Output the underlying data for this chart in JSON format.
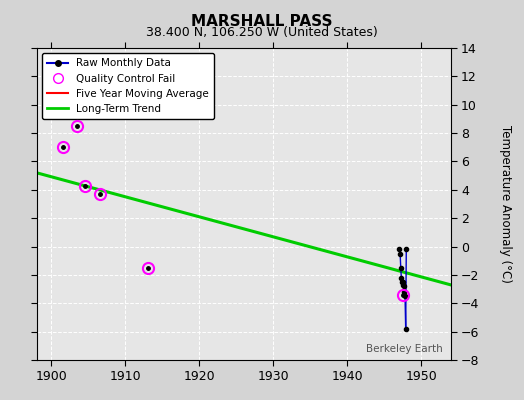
{
  "title": "MARSHALL PASS",
  "subtitle": "38.400 N, 106.250 W (United States)",
  "ylabel": "Temperature Anomaly (°C)",
  "watermark": "Berkeley Earth",
  "xlim": [
    1898,
    1954
  ],
  "ylim": [
    -8,
    14
  ],
  "yticks": [
    -8,
    -6,
    -4,
    -2,
    0,
    2,
    4,
    6,
    8,
    10,
    12,
    14
  ],
  "xticks": [
    1900,
    1910,
    1920,
    1930,
    1940,
    1950
  ],
  "background_color": "#d4d4d4",
  "plot_background": "#e6e6e6",
  "grid_color": "#ffffff",
  "raw_monthly_x": [
    1947.08,
    1947.17,
    1947.25,
    1947.33,
    1947.42,
    1947.5,
    1947.58,
    1947.67,
    1947.75,
    1947.83,
    1947.92,
    1948.0
  ],
  "raw_monthly_y": [
    -0.2,
    -0.5,
    -1.5,
    -2.2,
    -2.5,
    -2.7,
    -2.5,
    -2.8,
    -3.2,
    -3.5,
    -5.8,
    -0.2
  ],
  "raw_monthly_color": "#000000",
  "raw_monthly_line_color": "#0000cc",
  "qc_fail_x": [
    1901.5,
    1903.5,
    1904.5,
    1906.5,
    1913.0,
    1947.5
  ],
  "qc_fail_y": [
    7.0,
    8.5,
    4.3,
    3.7,
    -1.5,
    -3.4
  ],
  "qc_fail_color": "#ff00ff",
  "trend_x": [
    1898,
    1954
  ],
  "trend_y": [
    5.2,
    -2.7
  ],
  "trend_color": "#00cc00",
  "trend_linewidth": 2.2,
  "five_year_color": "#ff0000",
  "legend_loc": "upper left"
}
